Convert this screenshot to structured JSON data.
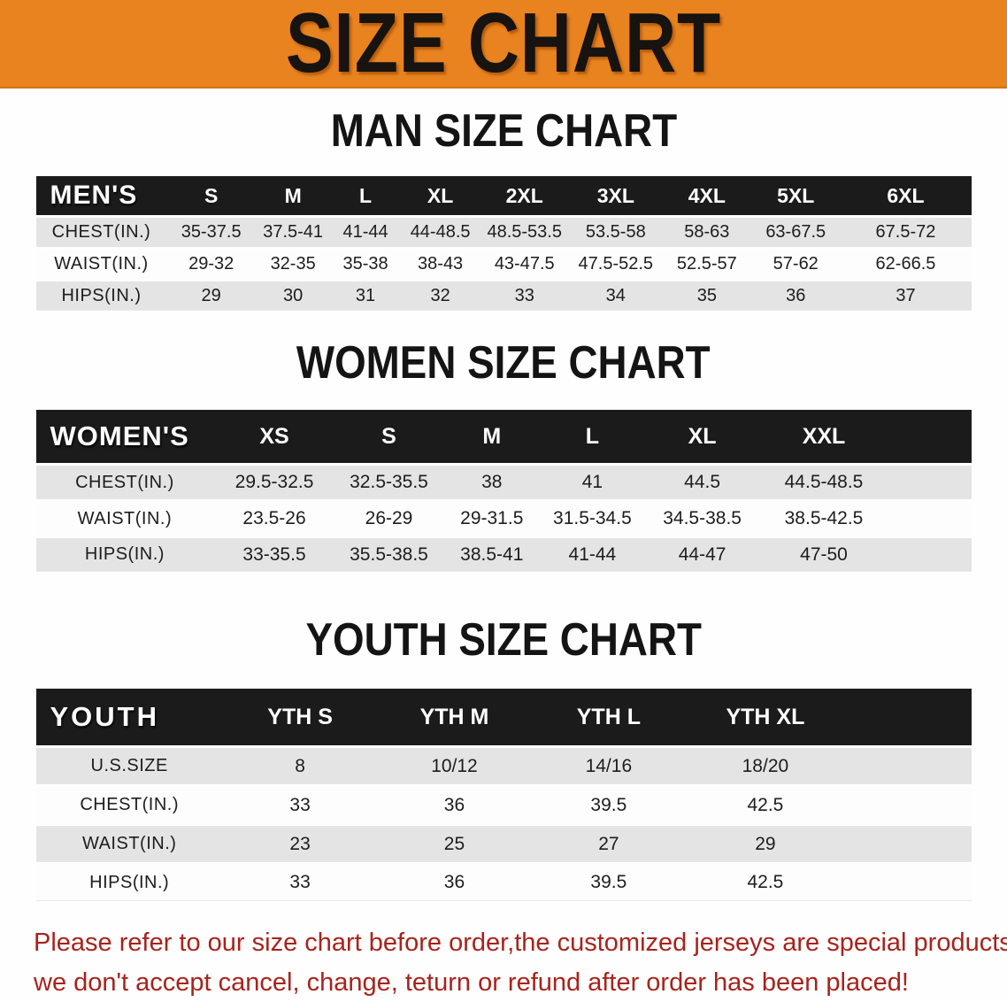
{
  "banner": {
    "title": "SIZE CHART"
  },
  "sections": [
    {
      "heading": "MAN SIZE CHART",
      "header_label": "MEN'S",
      "columns": [
        "S",
        "M",
        "L",
        "XL",
        "2XL",
        "3XL",
        "4XL",
        "5XL",
        "6XL"
      ],
      "rows": [
        {
          "label": "CHEST(IN.)",
          "values": [
            "35-37.5",
            "37.5-41",
            "41-44",
            "44-48.5",
            "48.5-53.5",
            "53.5-58",
            "58-63",
            "63-67.5",
            "67.5-72"
          ]
        },
        {
          "label": "WAIST(IN.)",
          "values": [
            "29-32",
            "32-35",
            "35-38",
            "38-43",
            "43-47.5",
            "47.5-52.5",
            "52.5-57",
            "57-62",
            "62-66.5"
          ]
        },
        {
          "label": "HIPS(IN.)",
          "values": [
            "29",
            "30",
            "31",
            "32",
            "33",
            "34",
            "35",
            "36",
            "37"
          ]
        }
      ]
    },
    {
      "heading": "WOMEN SIZE CHART",
      "header_label": "WOMEN'S",
      "columns": [
        "XS",
        "S",
        "M",
        "L",
        "XL",
        "XXL"
      ],
      "rows": [
        {
          "label": "CHEST(IN.)",
          "values": [
            "29.5-32.5",
            "32.5-35.5",
            "38",
            "41",
            "44.5",
            "44.5-48.5"
          ]
        },
        {
          "label": "WAIST(IN.)",
          "values": [
            "23.5-26",
            "26-29",
            "29-31.5",
            "31.5-34.5",
            "34.5-38.5",
            "38.5-42.5"
          ]
        },
        {
          "label": "HIPS(IN.)",
          "values": [
            "33-35.5",
            "35.5-38.5",
            "38.5-41",
            "41-44",
            "44-47",
            "47-50"
          ]
        }
      ]
    },
    {
      "heading": "YOUTH SIZE CHART",
      "header_label": "YOUTH",
      "columns": [
        "YTH S",
        "YTH M",
        "YTH L",
        "YTH XL"
      ],
      "rows": [
        {
          "label": "U.S.SIZE",
          "values": [
            "8",
            "10/12",
            "14/16",
            "18/20"
          ]
        },
        {
          "label": "CHEST(IN.)",
          "values": [
            "33",
            "36",
            "39.5",
            "42.5"
          ]
        },
        {
          "label": "WAIST(IN.)",
          "values": [
            "23",
            "25",
            "27",
            "29"
          ]
        },
        {
          "label": "HIPS(IN.)",
          "values": [
            "33",
            "36",
            "39.5",
            "42.5"
          ]
        }
      ]
    }
  ],
  "disclaimer": {
    "line1": "Please refer to our size chart before order,the customized jerseys are special products,",
    "line2": "we don't accept cancel, change, teturn or refund after order has been placed!"
  },
  "colors": {
    "banner_bg": "#E8831F",
    "banner_text": "#161310",
    "table_header_bg": "#1B1B1B",
    "table_header_text": "#FFFFFF",
    "row_alt_bg": "#E4E4E4",
    "row_bg": "#FDFDFD",
    "disclaimer_text": "#A7231C"
  }
}
